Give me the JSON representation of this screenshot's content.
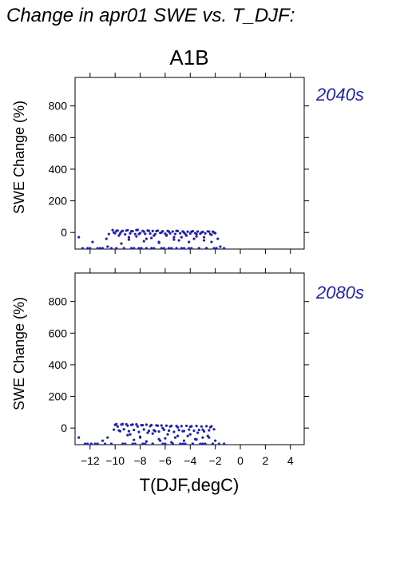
{
  "figure": {
    "title": "Change in apr01 SWE vs. T_DJF:",
    "scenario": "A1B",
    "xlabel": "T(DJF,degC)",
    "point_color": "#2020b0",
    "label_color": "#2323a8"
  },
  "chart_data": [
    {
      "type": "scatter",
      "period": "2040s",
      "ylabel": "SWE Change (%)",
      "xlim": [
        -13.2,
        5.1
      ],
      "ylim": [
        -105,
        980
      ],
      "x_ticks": [
        -12,
        -10,
        -8,
        -6,
        -4,
        -2,
        0,
        2,
        4
      ],
      "y_ticks": [
        0,
        200,
        400,
        600,
        800
      ],
      "x_tick_labels_shown": false,
      "grid": false,
      "points_note_series": {
        "upper_band": {
          "x_range": [
            -10.5,
            -1.8
          ],
          "y_range": [
            -50,
            18
          ]
        },
        "floor": {
          "x_range": [
            -13,
            -1.2
          ],
          "y": -100
        }
      },
      "x": [
        -12.9,
        -12.6,
        -12.2,
        -11.8,
        -11.4,
        -11.0,
        -10.7,
        -10.5,
        -10.3,
        -10.1,
        -9.9,
        -9.7,
        -9.5,
        -9.3,
        -9.1,
        -8.9,
        -8.7,
        -8.5,
        -8.3,
        -8.1,
        -7.9,
        -7.7,
        -7.5,
        -7.3,
        -7.1,
        -6.9,
        -6.7,
        -6.5,
        -6.3,
        -6.1,
        -5.9,
        -5.7,
        -5.5,
        -5.3,
        -5.1,
        -4.9,
        -4.7,
        -4.5,
        -4.3,
        -4.1,
        -3.9,
        -3.7,
        -3.5,
        -3.3,
        -3.1,
        -2.9,
        -2.7,
        -2.5,
        -2.3,
        -2.1,
        -1.9,
        -1.6,
        -1.3,
        -10.2,
        -9.8,
        -9.4,
        -9.0,
        -8.6,
        -8.2,
        -7.8,
        -7.4,
        -7.0,
        -6.6,
        -6.2,
        -5.8,
        -5.4,
        -5.0,
        -4.6,
        -4.2,
        -3.8,
        -3.4,
        -3.0,
        -2.6,
        -2.2,
        -10.0,
        -9.6,
        -9.2,
        -8.8,
        -8.4,
        -8.0,
        -7.6,
        -7.2,
        -6.8,
        -6.4,
        -6.0,
        -5.6,
        -5.2,
        -4.8,
        -4.4,
        -4.0,
        -3.6,
        -3.2,
        -2.8,
        -2.4,
        -2.0,
        -9.9,
        -9.3,
        -8.7,
        -8.1,
        -7.5,
        -6.9,
        -6.3,
        -5.7,
        -5.1,
        -4.5,
        -3.9,
        -3.3,
        -2.7,
        -2.1,
        -10.6,
        -11.2,
        -12.0,
        -9.5,
        -8.9,
        -8.3,
        -7.7,
        -7.1,
        -6.5,
        -5.9,
        -5.3,
        -4.7,
        -4.1,
        -3.5,
        -2.9,
        -2.3,
        -1.8
      ],
      "y": [
        -30,
        -100,
        -100,
        -60,
        -100,
        -100,
        -40,
        -10,
        -100,
        0,
        10,
        -20,
        5,
        -100,
        12,
        -30,
        8,
        -100,
        15,
        -10,
        -100,
        5,
        -40,
        10,
        -100,
        -20,
        8,
        -60,
        0,
        -100,
        -15,
        5,
        -100,
        -30,
        10,
        -50,
        -100,
        0,
        -20,
        -100,
        5,
        -40,
        -10,
        -100,
        0,
        -30,
        -100,
        5,
        -60,
        0,
        -100,
        -90,
        -100,
        15,
        12,
        10,
        14,
        8,
        16,
        10,
        12,
        9,
        11,
        8,
        10,
        6,
        9,
        7,
        5,
        8,
        6,
        4,
        7,
        5,
        -5,
        -8,
        -12,
        -6,
        -10,
        -4,
        -9,
        -7,
        -11,
        -3,
        -8,
        -6,
        -10,
        -5,
        -9,
        -7,
        -4,
        -8,
        -6,
        -10,
        -5,
        -100,
        -100,
        -100,
        -100,
        -100,
        -100,
        -100,
        -100,
        -100,
        -100,
        -100,
        -100,
        -100,
        -100,
        -90,
        -100,
        -100,
        -70,
        -45,
        -25,
        -55,
        -35,
        -65,
        -20,
        -45,
        -30,
        -60,
        -25,
        -50,
        -15,
        -40
      ]
    },
    {
      "type": "scatter",
      "period": "2080s",
      "ylabel": "SWE Change (%)",
      "xlim": [
        -13.2,
        5.1
      ],
      "ylim": [
        -105,
        980
      ],
      "x_ticks": [
        -12,
        -10,
        -8,
        -6,
        -4,
        -2,
        0,
        2,
        4
      ],
      "y_ticks": [
        0,
        200,
        400,
        600,
        800
      ],
      "x_tick_labels_shown": true,
      "grid": false,
      "x": [
        -12.9,
        -12.4,
        -11.9,
        -11.4,
        -11.0,
        -10.6,
        -10.3,
        -10.0,
        -9.8,
        -9.6,
        -9.4,
        -9.2,
        -9.0,
        -8.8,
        -8.6,
        -8.4,
        -8.2,
        -8.0,
        -7.8,
        -7.6,
        -7.4,
        -7.2,
        -7.0,
        -6.8,
        -6.6,
        -6.4,
        -6.2,
        -6.0,
        -5.8,
        -5.6,
        -5.4,
        -5.2,
        -5.0,
        -4.8,
        -4.6,
        -4.4,
        -4.2,
        -4.0,
        -3.8,
        -3.6,
        -3.4,
        -3.2,
        -3.0,
        -2.8,
        -2.6,
        -2.4,
        -2.2,
        -2.0,
        -1.7,
        -1.3,
        -9.9,
        -9.5,
        -9.1,
        -8.7,
        -8.3,
        -7.9,
        -7.5,
        -7.1,
        -6.7,
        -6.3,
        -5.9,
        -5.5,
        -5.1,
        -4.7,
        -4.3,
        -3.9,
        -3.5,
        -3.1,
        -2.7,
        -2.3,
        -10.1,
        -9.7,
        -9.3,
        -8.9,
        -8.5,
        -8.1,
        -7.7,
        -7.3,
        -6.9,
        -6.5,
        -6.1,
        -5.7,
        -5.3,
        -4.9,
        -4.5,
        -4.1,
        -3.7,
        -3.3,
        -2.9,
        -2.5,
        -2.1,
        -9.0,
        -8.0,
        -7.0,
        -6.0,
        -5.0,
        -4.0,
        -3.0,
        -8.5,
        -7.5,
        -6.5,
        -5.5,
        -4.5,
        -3.5,
        -2.5,
        -10.8,
        -11.6,
        -12.2,
        -9.4,
        -8.6,
        -7.8,
        -7.0,
        -6.2,
        -5.4,
        -4.6,
        -3.8,
        -3.0,
        -2.2
      ],
      "y": [
        -60,
        -100,
        -100,
        -100,
        -80,
        -60,
        -100,
        20,
        10,
        -20,
        25,
        -100,
        15,
        -40,
        22,
        -100,
        10,
        -60,
        18,
        -100,
        -30,
        12,
        -100,
        -20,
        15,
        -80,
        0,
        -100,
        -40,
        10,
        -100,
        -60,
        5,
        -100,
        -20,
        -100,
        -50,
        8,
        -100,
        -70,
        -30,
        -100,
        -10,
        -100,
        -50,
        5,
        -100,
        -80,
        -100,
        -100,
        25,
        22,
        24,
        20,
        23,
        18,
        21,
        19,
        17,
        16,
        15,
        14,
        13,
        12,
        14,
        11,
        13,
        10,
        12,
        11,
        -10,
        -15,
        -8,
        -20,
        -12,
        -25,
        -9,
        -18,
        -14,
        -22,
        -11,
        -16,
        -24,
        -13,
        -19,
        -10,
        -17,
        -12,
        -21,
        -14,
        -8,
        -45,
        -55,
        -35,
        -65,
        -50,
        -40,
        -60,
        -75,
        -85,
        -70,
        -90,
        -80,
        -72,
        -60,
        -100,
        -100,
        -100,
        -100,
        -100,
        -100,
        -100,
        -100,
        -100,
        -100,
        -100,
        -100,
        -100
      ]
    }
  ]
}
